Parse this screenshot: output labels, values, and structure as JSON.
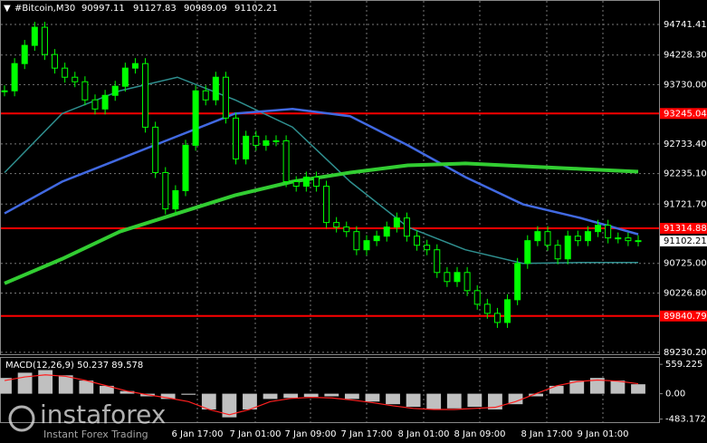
{
  "chart_data": {
    "type": "candlestick",
    "header": {
      "symbol": "#Bitcoin,M30",
      "open": 90997.11,
      "high": 91127.83,
      "low": 90989.09,
      "close": 91102.21
    },
    "ylim": [
      89198,
      95153
    ],
    "yticks": [
      94741.41,
      {
        "value": 94228.3,
        "label": "94228.30"
      },
      {
        "value": 93730,
        "label": "93730.00"
      },
      {
        "value": 92733.4,
        "label": "92733.40"
      },
      {
        "value": 92235.1,
        "label": "92235.10"
      },
      {
        "value": 91721.7,
        "label": "91721.70"
      },
      {
        "value": 90725,
        "label": "90725.00"
      },
      {
        "value": 90226.8,
        "label": "90226.80"
      },
      {
        "value": 89230.2,
        "label": "89230.20"
      }
    ],
    "levels": [
      93245.04,
      91314.88,
      89840.79
    ],
    "current_price": 91102.21,
    "time_labels": [
      "6 Jan 17:00",
      "7 Jan 01:00",
      "7 Jan 09:00",
      "7 Jan 17:00",
      "8 Jan 01:00",
      "8 Jan 09:00",
      "8 Jan 17:00",
      "9 Jan 01:00"
    ],
    "values": [
      93626,
      94084,
      94390,
      94695,
      94237,
      94008,
      93855,
      93779,
      93474,
      93321,
      93550,
      93703,
      94008,
      94084,
      93015,
      92252,
      91641,
      91947,
      92710,
      93626,
      93474,
      93855,
      93168,
      92481,
      92863,
      92710,
      92786,
      92786,
      92099,
      92023,
      92176,
      92023,
      91412,
      91336,
      91259,
      90954,
      91107,
      91183,
      91336,
      91488,
      91183,
      91030,
      90954,
      90572,
      90420,
      90572,
      90267,
      90038,
      89885,
      89732,
      90114,
      90725,
      91107,
      91259,
      91030,
      90801,
      91183,
      91107,
      91259,
      91366,
      91153,
      91153,
      91107,
      91102.21
    ],
    "color": "#00ff00",
    "series": [
      {
        "color": "#2f8f8f",
        "values": [
          92252,
          93244,
          93626,
          93855,
          93474,
          93015,
          92099,
          91336,
          90954,
          90725,
          90740,
          90740
        ]
      },
      {
        "color": "#4169e1",
        "values": [
          91565,
          92099,
          92481,
          92863,
          93244,
          93321,
          93199,
          92710,
          92176,
          91718,
          91488,
          91214
        ]
      },
      {
        "color": "#32cd32",
        "values": [
          90389,
          90801,
          91259,
          91565,
          91870,
          92099,
          92252,
          92374,
          92405,
          92359,
          92313,
          92267
        ]
      }
    ],
    "macd": {
      "title": "MACD(12,26,9) 50.237 89.578",
      "ylim": [
        -542,
        683
      ],
      "yticks": [
        559.225,
        {
          "value": 0,
          "label": "0.00"
        },
        -483.172
      ],
      "histogram": [
        300,
        400,
        450,
        350,
        250,
        150,
        50,
        -50,
        -100,
        -20,
        -300,
        -450,
        -300,
        -100,
        -80,
        -60,
        -50,
        -100,
        -150,
        -200,
        -250,
        -300,
        -280,
        -250,
        -300,
        -200,
        -50,
        150,
        250,
        300,
        250,
        180
      ],
      "signal": [
        250,
        320,
        360,
        330,
        250,
        150,
        50,
        -20,
        -80,
        -150,
        -300,
        -400,
        -300,
        -150,
        -90,
        -70,
        -80,
        -120,
        -170,
        -230,
        -280,
        -300,
        -300,
        -280,
        -260,
        -150,
        0,
        150,
        230,
        260,
        240,
        190
      ],
      "hist_color": "#c0c0c0",
      "signal_color": "#ff2020"
    },
    "watermark": {
      "brand": "instaforex",
      "tagline": "Instant Forex Trading"
    }
  }
}
